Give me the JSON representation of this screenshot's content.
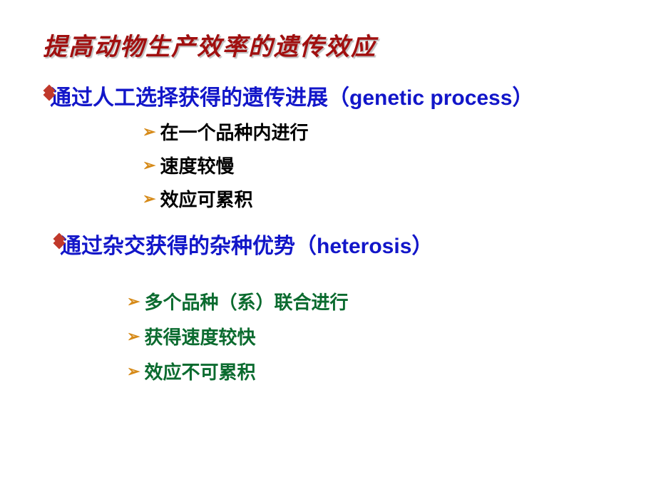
{
  "colors": {
    "title": "#a10f0f",
    "heading": "#1216c9",
    "sub1": "#000000",
    "sub2": "#0b6b2f",
    "diamond": "#c0392b",
    "arrow": "#d68a18",
    "background": "#ffffff"
  },
  "typography": {
    "title_size": 34,
    "heading_size": 30,
    "sub_size": 26
  },
  "title": "提高动物生产效率的遗传效应",
  "section1": {
    "heading": "通过人工选择获得的遗传进展（genetic process）",
    "items": [
      "在一个品种内进行",
      "速度较慢",
      "效应可累积"
    ]
  },
  "section2": {
    "heading": "通过杂交获得的杂种优势（heterosis）",
    "items": [
      "多个品种（系）联合进行",
      "获得速度较快",
      "效应不可累积"
    ]
  }
}
